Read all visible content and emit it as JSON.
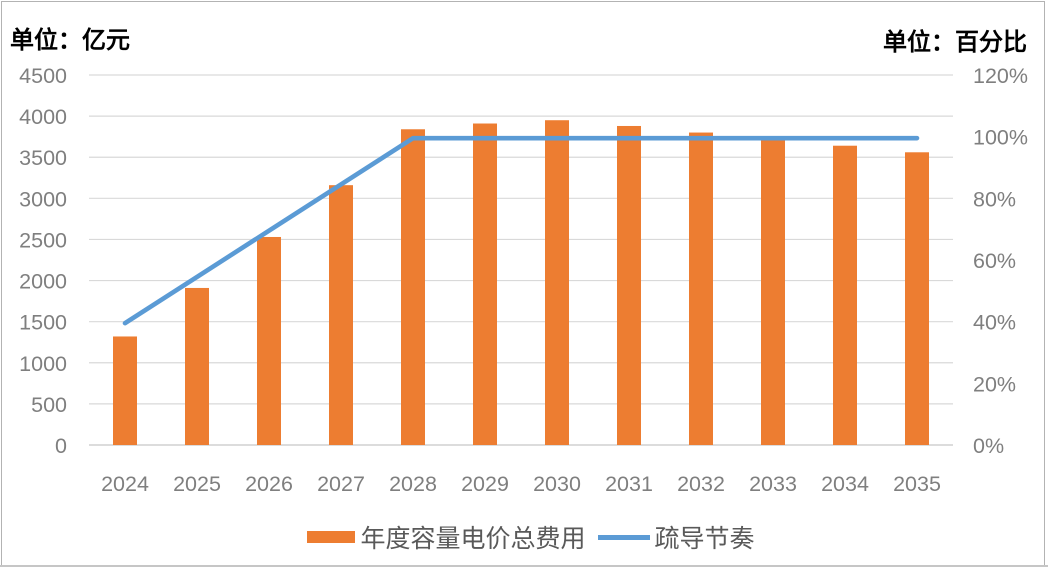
{
  "titles": {
    "left": "单位：亿元",
    "right": "单位：百分比"
  },
  "chart_data": {
    "type": "combo",
    "categories": [
      "2024",
      "2025",
      "2026",
      "2027",
      "2028",
      "2029",
      "2030",
      "2031",
      "2032",
      "2033",
      "2034",
      "2035"
    ],
    "series": [
      {
        "name": "年度容量电价总费用",
        "type": "bar",
        "axis": "left",
        "color": "#ED7D31",
        "values": [
          1320,
          1910,
          2530,
          3160,
          3840,
          3910,
          3950,
          3880,
          3800,
          3730,
          3640,
          3560
        ]
      },
      {
        "name": "疏导节奏",
        "type": "line",
        "axis": "right",
        "color": "#5B9BD5",
        "values": [
          40,
          55,
          70,
          85,
          100,
          100,
          100,
          100,
          100,
          100,
          100,
          100
        ]
      }
    ],
    "left_axis": {
      "ylim": [
        0,
        4500
      ],
      "tick_step": 500,
      "tick_labels": [
        "0",
        "500",
        "1000",
        "1500",
        "2000",
        "2500",
        "3000",
        "3500",
        "4000",
        "4500"
      ]
    },
    "right_axis": {
      "ylim": [
        0,
        120
      ],
      "tick_step": 20,
      "tick_labels": [
        "0%",
        "20%",
        "40%",
        "60%",
        "80%",
        "100%",
        "120%"
      ]
    },
    "grid": true,
    "legend_position": "bottom"
  },
  "style": {
    "grid_color": "#D9D9D9",
    "axis_line_color": "#C6C6C6",
    "tick_label_color": "#7F7F7F",
    "legend_text_color": "#595959",
    "background": "#FFFFFF"
  }
}
